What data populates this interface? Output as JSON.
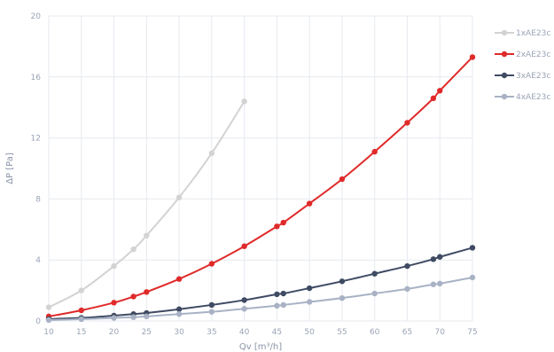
{
  "chart_data": {
    "type": "line",
    "xlabel": "Qv [m³/h]",
    "ylabel": "ΔP [Pa]",
    "xlim": [
      10,
      75
    ],
    "ylim": [
      0,
      20
    ],
    "xticks": [
      10,
      15,
      20,
      25,
      30,
      35,
      40,
      45,
      50,
      55,
      60,
      65,
      70,
      75
    ],
    "yticks": [
      0,
      4,
      8,
      12,
      16,
      20
    ],
    "grid": true,
    "legend_position": "right",
    "series": [
      {
        "name": "1xAE23c",
        "color": "#d3d3d3",
        "points": [
          [
            10,
            0.9
          ],
          [
            15,
            2.0
          ],
          [
            20,
            3.6
          ],
          [
            23,
            4.7
          ],
          [
            25,
            5.6
          ],
          [
            30,
            8.1
          ],
          [
            35,
            11.0
          ],
          [
            40,
            14.4
          ]
        ]
      },
      {
        "name": "2xAE23c",
        "color": "#e02a2a",
        "points": [
          [
            10,
            0.3
          ],
          [
            15,
            0.7
          ],
          [
            20,
            1.2
          ],
          [
            23,
            1.6
          ],
          [
            25,
            1.9
          ],
          [
            30,
            2.75
          ],
          [
            35,
            3.75
          ],
          [
            40,
            4.9
          ],
          [
            45,
            6.2
          ],
          [
            46,
            6.45
          ],
          [
            50,
            7.7
          ],
          [
            55,
            9.3
          ],
          [
            60,
            11.1
          ],
          [
            65,
            13.0
          ],
          [
            69,
            14.6
          ],
          [
            70,
            15.1
          ],
          [
            75,
            17.3
          ]
        ]
      },
      {
        "name": "3xAE23c",
        "color": "#3f4b63",
        "points": [
          [
            10,
            0.13
          ],
          [
            15,
            0.2
          ],
          [
            20,
            0.35
          ],
          [
            23,
            0.45
          ],
          [
            25,
            0.52
          ],
          [
            30,
            0.77
          ],
          [
            35,
            1.05
          ],
          [
            40,
            1.37
          ],
          [
            45,
            1.75
          ],
          [
            46,
            1.8
          ],
          [
            50,
            2.15
          ],
          [
            55,
            2.6
          ],
          [
            60,
            3.1
          ],
          [
            65,
            3.6
          ],
          [
            69,
            4.05
          ],
          [
            70,
            4.2
          ],
          [
            75,
            4.8
          ]
        ]
      },
      {
        "name": "4xAE23c",
        "color": "#a9b2c5",
        "points": [
          [
            10,
            0.06
          ],
          [
            15,
            0.12
          ],
          [
            20,
            0.2
          ],
          [
            23,
            0.25
          ],
          [
            25,
            0.3
          ],
          [
            30,
            0.45
          ],
          [
            35,
            0.6
          ],
          [
            40,
            0.8
          ],
          [
            45,
            1.0
          ],
          [
            46,
            1.05
          ],
          [
            50,
            1.25
          ],
          [
            55,
            1.5
          ],
          [
            60,
            1.8
          ],
          [
            65,
            2.1
          ],
          [
            69,
            2.4
          ],
          [
            70,
            2.45
          ],
          [
            75,
            2.85
          ]
        ]
      }
    ]
  }
}
